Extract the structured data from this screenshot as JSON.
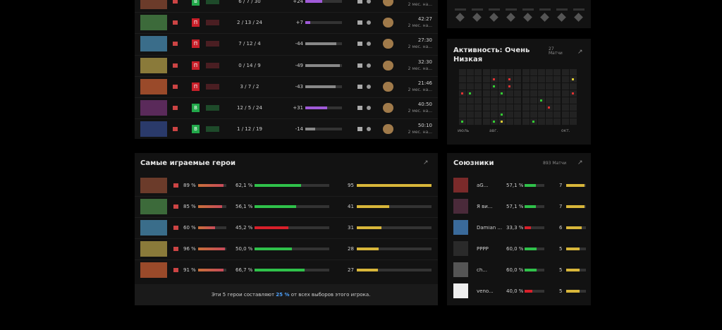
{
  "matches": [
    {
      "result": "В",
      "kda": "6 / 7 / 30",
      "delta": "+24",
      "time": null,
      "ago": "2 мес. на..."
    },
    {
      "result": "П",
      "kda": "2 / 13 / 24",
      "delta": "+7",
      "time": "42:27",
      "ago": "2 мес. на..."
    },
    {
      "result": "П",
      "kda": "7 / 12 / 4",
      "delta": "-44",
      "time": "27:30",
      "ago": "2 мес. на..."
    },
    {
      "result": "П",
      "kda": "0 / 14 / 9",
      "delta": "-49",
      "time": "32:30",
      "ago": "2 мес. на..."
    },
    {
      "result": "П",
      "kda": "3 / 7 / 2",
      "delta": "-43",
      "time": "21:46",
      "ago": "2 мес. на..."
    },
    {
      "result": "В",
      "kda": "12 / 5 / 24",
      "delta": "+31",
      "time": "40:50",
      "ago": "2 мес. на..."
    },
    {
      "result": "В",
      "kda": "1 / 12 / 19",
      "delta": "-14",
      "time": "50:10",
      "ago": "2 мес. на..."
    }
  ],
  "heroes": {
    "title": "Самые играемые герои",
    "rows": [
      {
        "pick": "89 %",
        "winrate": "62,1 %",
        "matches": 95
      },
      {
        "pick": "85 %",
        "winrate": "56,1 %",
        "matches": 41
      },
      {
        "pick": "60 %",
        "winrate": "45,2 %",
        "matches": 31
      },
      {
        "pick": "96 %",
        "winrate": "50,0 %",
        "matches": 28
      },
      {
        "pick": "91 %",
        "winrate": "66,7 %",
        "matches": 27
      }
    ],
    "footer": {
      "before": "Эти 5 герои составляют",
      "share": "25 %",
      "after": "от всех выборов этого игрока."
    }
  },
  "activity": {
    "title": "Активность: Очень Низкая",
    "matches": "27 Матчи",
    "months": [
      "июль",
      "авг.",
      "окт."
    ]
  },
  "allies": {
    "title": "Союзники",
    "matches": "893 Матчи",
    "rows": [
      {
        "name": "aG...",
        "winrate": "57,1 %",
        "matches": 7
      },
      {
        "name": "Я ви...",
        "winrate": "57,1 %",
        "matches": 7
      },
      {
        "name": "Damian ...",
        "winrate": "33,3 %",
        "matches": 6
      },
      {
        "name": "PPPP",
        "winrate": "60,0 %",
        "matches": 5
      },
      {
        "name": "ch...",
        "winrate": "60,0 %",
        "matches": 5
      },
      {
        "name": "veno...",
        "winrate": "40,0 %",
        "matches": 5
      }
    ]
  }
}
